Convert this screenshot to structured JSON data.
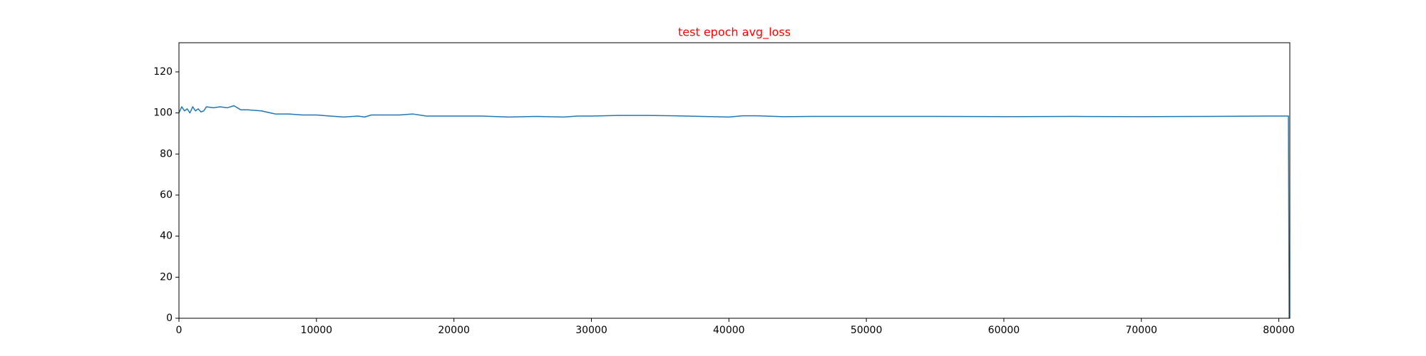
{
  "chart_data": {
    "type": "line",
    "title": "test epoch avg_loss",
    "title_color": "#ff0000",
    "x": [
      0,
      200,
      400,
      600,
      800,
      1000,
      1200,
      1400,
      1600,
      1800,
      2000,
      2500,
      3000,
      3500,
      4000,
      4500,
      5000,
      6000,
      7000,
      8000,
      9000,
      10000,
      11000,
      12000,
      13000,
      13500,
      14000,
      15000,
      16000,
      17000,
      18000,
      19000,
      20000,
      21000,
      22000,
      24000,
      26000,
      28000,
      29000,
      30000,
      32000,
      34000,
      36000,
      38000,
      40000,
      41000,
      42000,
      44000,
      46000,
      50000,
      55000,
      60000,
      65000,
      70000,
      75000,
      80000,
      80700,
      80750
    ],
    "series": [
      {
        "color": "#1f77b4",
        "values": [
          100,
          103,
          101,
          102,
          100,
          103,
          101,
          102,
          100.5,
          101,
          103,
          102.5,
          103,
          102.5,
          103.5,
          101.5,
          101.5,
          101,
          99.5,
          99.5,
          99,
          99,
          98.5,
          98,
          98.5,
          98,
          99,
          99,
          99,
          99.5,
          98.5,
          98.5,
          98.5,
          98.5,
          98.5,
          98,
          98.3,
          98,
          98.5,
          98.5,
          98.8,
          98.8,
          98.6,
          98.3,
          98,
          98.6,
          98.6,
          98.2,
          98.3,
          98.3,
          98.3,
          98.2,
          98.3,
          98.2,
          98.3,
          98.5,
          98.5,
          0
        ]
      }
    ],
    "xlim": [
      0,
      80800
    ],
    "xticks": [
      0,
      10000,
      20000,
      30000,
      40000,
      50000,
      60000,
      70000,
      80000
    ],
    "ylim": [
      0,
      134.2
    ],
    "yticks": [
      0,
      20,
      40,
      60,
      80,
      100,
      120
    ],
    "grid": false
  }
}
